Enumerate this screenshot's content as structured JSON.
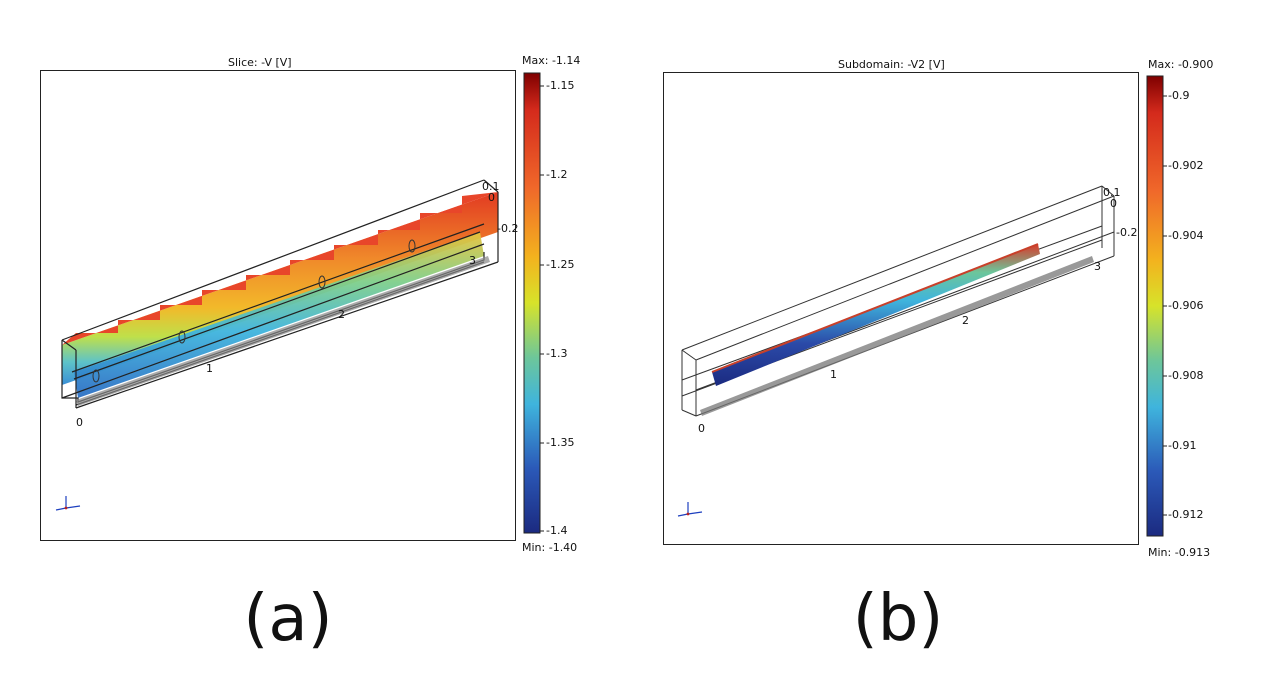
{
  "panels": [
    {
      "id": "a",
      "title": "Slice: -V [V]",
      "colorbar": {
        "max_label": "Max: -1.14",
        "min_label": "Min: -1.40",
        "ticks": [
          "-1.15",
          "-1.2",
          "-1.25",
          "-1.3",
          "-1.35",
          "-1.4"
        ]
      },
      "axis_numbers": [
        "0",
        "1",
        "2",
        "3",
        "0.1",
        "0",
        "-0.2"
      ],
      "caption": "(a)"
    },
    {
      "id": "b",
      "title": "Subdomain: -V2 [V]",
      "colorbar": {
        "max_label": "Max: -0.900",
        "min_label": "Min: -0.913",
        "ticks": [
          "-0.9",
          "-0.902",
          "-0.904",
          "-0.906",
          "-0.908",
          "-0.91",
          "-0.912"
        ]
      },
      "axis_numbers": [
        "0",
        "1",
        "2",
        "3",
        "0.1",
        "0",
        "-0.2"
      ],
      "caption": "(b)"
    }
  ],
  "colors": {
    "jet_top": "#7f0000",
    "jet_red": "#e8301c",
    "jet_orange": "#f39a1e",
    "jet_yellow": "#e4e51f",
    "jet_green": "#7dc97c",
    "jet_cyan": "#3fb4dd",
    "jet_blue": "#2b59b8",
    "jet_bottom": "#1b2a80"
  }
}
